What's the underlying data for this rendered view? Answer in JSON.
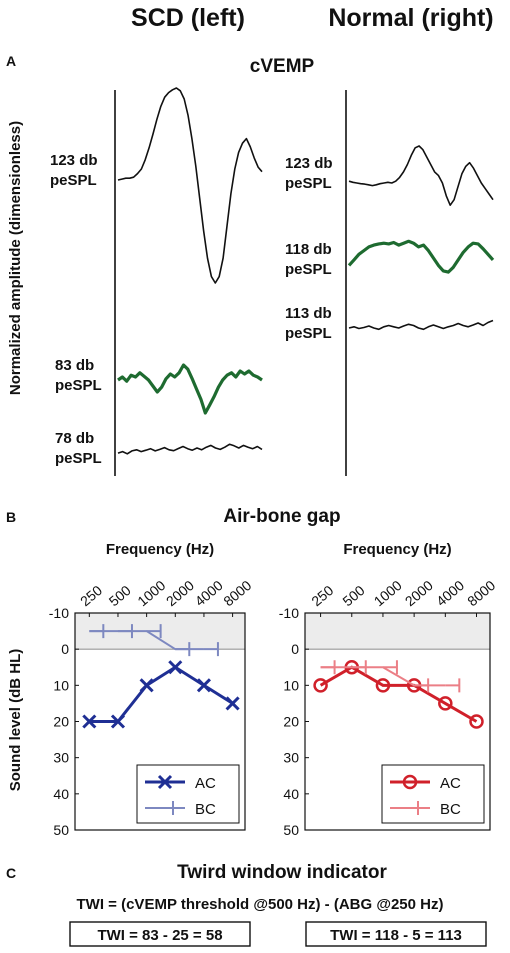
{
  "header": {
    "left_title": "SCD (left)",
    "right_title": "Normal (right)"
  },
  "panel_a": {
    "letter": "A",
    "title": "cVEMP",
    "ylabel": "Normalized amplitude (dimensionless)"
  },
  "panel_b": {
    "letter": "B",
    "title": "Air-bone gap"
  },
  "panel_c": {
    "letter": "C",
    "title": "Twird window indicator",
    "formula": "TWI = (cVEMP threshold @500 Hz) - (ABG @250 Hz)",
    "left_result": "TWI = 83 - 25 = 58",
    "right_result": "TWI = 118 - 5 = 113"
  },
  "colors": {
    "trace_black": "#111111",
    "trace_green": "#1e6b30",
    "ac_left": "#1f2f94",
    "bc_left": "#7d88c0",
    "ac_right": "#d0202a",
    "bc_right": "#eb7f86",
    "shade": "#ececec"
  },
  "chart_data": [
    {
      "type": "line",
      "panel": "cvemp-left",
      "traces": [
        {
          "label1": "123 db",
          "label2": "peSPL",
          "color": "trace_black",
          "values": [
            0,
            0.01,
            0.02,
            0.02,
            0.03,
            0.07,
            0.12,
            0.22,
            0.35,
            0.5,
            0.66,
            0.8,
            0.9,
            0.95,
            0.98,
            1.0,
            0.97,
            0.88,
            0.7,
            0.45,
            0.15,
            -0.2,
            -0.55,
            -0.85,
            -1.05,
            -1.12,
            -1.05,
            -0.85,
            -0.5,
            -0.15,
            0.12,
            0.3,
            0.4,
            0.45,
            0.36,
            0.24,
            0.14,
            0.09
          ]
        },
        {
          "label1": "83 db",
          "label2": "peSPL",
          "color": "trace_green",
          "values": [
            0,
            0.05,
            -0.02,
            0.08,
            0.05,
            0.12,
            0.06,
            0.0,
            -0.1,
            -0.2,
            -0.12,
            0.02,
            0.1,
            0.05,
            0.12,
            0.25,
            0.18,
            0.02,
            -0.15,
            -0.32,
            -0.55,
            -0.42,
            -0.28,
            -0.12,
            0.0,
            0.08,
            0.12,
            0.05,
            0.15,
            0.1,
            0.15,
            0.08,
            0.05,
            0.0
          ]
        },
        {
          "label1": "78 db",
          "label2": "peSPL",
          "color": "trace_black",
          "values": [
            -0.05,
            0.02,
            -0.08,
            0.05,
            0.1,
            0.02,
            0.08,
            0.15,
            0.05,
            0.12,
            0.2,
            0.1,
            0.06,
            0.16,
            0.25,
            0.15,
            0.08,
            0.18,
            0.1,
            0.22,
            0.3,
            0.18,
            0.12,
            0.22,
            0.35,
            0.28,
            0.18,
            0.3,
            0.22,
            0.15,
            0.25,
            0.12
          ]
        }
      ]
    },
    {
      "type": "line",
      "panel": "cvemp-right",
      "traces": [
        {
          "label1": "123 db",
          "label2": "peSPL",
          "color": "trace_black",
          "values": [
            0.05,
            0.02,
            0.0,
            -0.02,
            -0.03,
            -0.05,
            -0.07,
            -0.05,
            -0.02,
            0.0,
            0.02,
            0.0,
            0.05,
            0.15,
            0.3,
            0.5,
            0.75,
            0.95,
            1.0,
            0.9,
            0.7,
            0.5,
            0.3,
            0.2,
            0.0,
            -0.35,
            -0.6,
            -0.45,
            -0.1,
            0.25,
            0.45,
            0.55,
            0.4,
            0.2,
            0.0,
            -0.15,
            -0.3,
            -0.45
          ]
        },
        {
          "label1": "118 db",
          "label2": "peSPL",
          "color": "trace_green",
          "values": [
            -0.2,
            -0.05,
            0.1,
            0.2,
            0.3,
            0.35,
            0.38,
            0.4,
            0.38,
            0.42,
            0.35,
            0.4,
            0.45,
            0.4,
            0.3,
            0.35,
            0.2,
            0.0,
            -0.2,
            -0.35,
            -0.38,
            -0.25,
            -0.05,
            0.15,
            0.3,
            0.4,
            0.38,
            0.25,
            0.1,
            -0.05
          ]
        },
        {
          "label1": "113 db",
          "label2": "peSPL",
          "color": "trace_black",
          "values": [
            0,
            0.05,
            -0.02,
            0.02,
            0.08,
            0.0,
            -0.05,
            0.05,
            0.1,
            0.05,
            0.0,
            0.08,
            0.15,
            0.1,
            0.0,
            -0.05,
            0.05,
            0.12,
            0.05,
            -0.02,
            0.05,
            0.1,
            0.18,
            0.1,
            0.05,
            0.12,
            0.2,
            0.1,
            0.22,
            0.3
          ]
        }
      ]
    },
    {
      "type": "line",
      "panel": "abg-left",
      "xlabel": "Frequency (Hz)",
      "ylabel": "Sound level (dB HL)",
      "x_ticks": [
        "250",
        "500",
        "1000",
        "2000",
        "4000",
        "8000"
      ],
      "y_ticks": [
        -10,
        0,
        10,
        20,
        30,
        40,
        50
      ],
      "ylim": [
        -10,
        50
      ],
      "y_reversed": true,
      "shaded_range": [
        -10,
        0
      ],
      "legend_position": "bottom-right",
      "series": [
        {
          "name": "AC",
          "marker": "x",
          "color": "ac_left",
          "x": [
            250,
            500,
            1000,
            2000,
            4000,
            8000
          ],
          "values": [
            20,
            20,
            10,
            5,
            10,
            15
          ]
        },
        {
          "name": "BC",
          "marker": "bracket",
          "color": "bc_left",
          "x": [
            250,
            500,
            1000,
            2000,
            4000
          ],
          "values": [
            -5,
            -5,
            -5,
            0,
            0
          ]
        }
      ]
    },
    {
      "type": "line",
      "panel": "abg-right",
      "xlabel": "Frequency (Hz)",
      "x_ticks": [
        "250",
        "500",
        "1000",
        "2000",
        "4000",
        "8000"
      ],
      "y_ticks": [
        -10,
        0,
        10,
        20,
        30,
        40,
        50
      ],
      "ylim": [
        -10,
        50
      ],
      "y_reversed": true,
      "shaded_range": [
        -10,
        0
      ],
      "legend_position": "bottom-right",
      "series": [
        {
          "name": "AC",
          "marker": "o",
          "color": "ac_right",
          "x": [
            250,
            500,
            1000,
            2000,
            4000,
            8000
          ],
          "values": [
            10,
            5,
            10,
            10,
            15,
            20
          ]
        },
        {
          "name": "BC",
          "marker": "bracket",
          "color": "bc_right",
          "x": [
            250,
            500,
            1000,
            2000,
            4000
          ],
          "values": [
            5,
            5,
            5,
            10,
            10
          ]
        }
      ]
    }
  ]
}
